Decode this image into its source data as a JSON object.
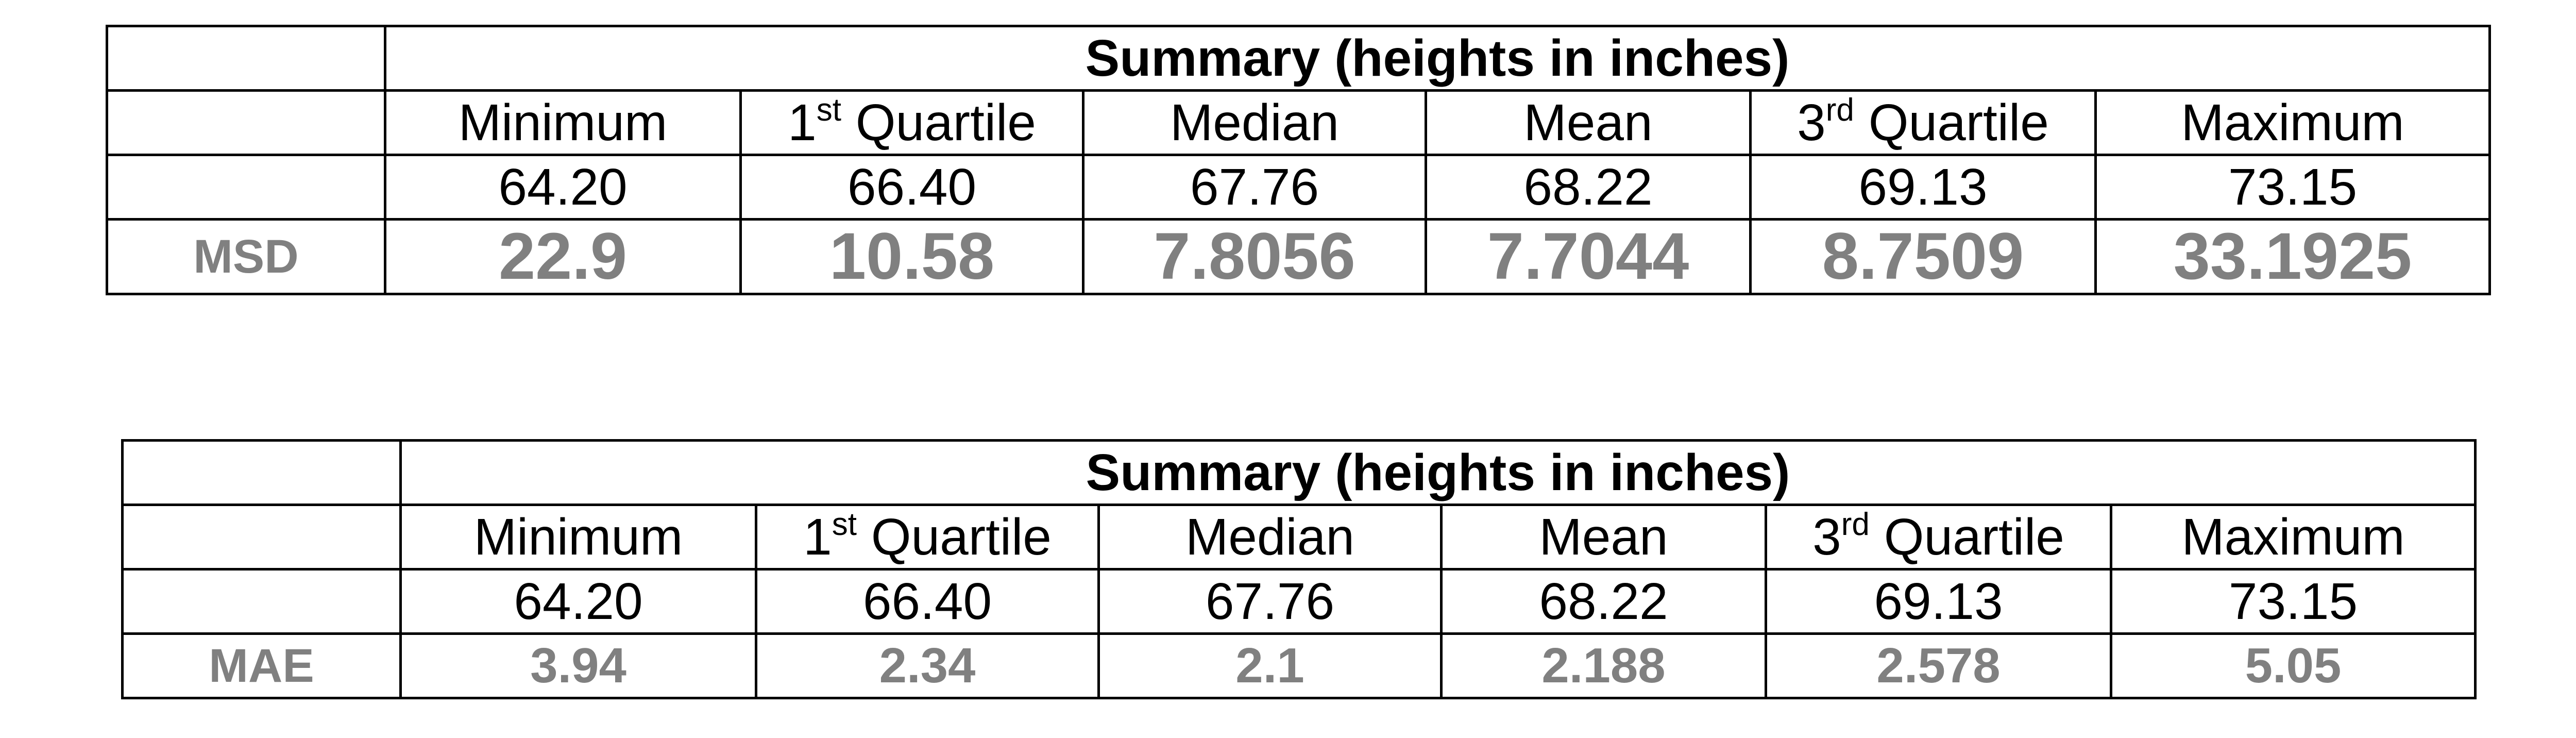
{
  "tables": [
    {
      "title": "Summary (heights in inches)",
      "headers": [
        {
          "main": "Minimum",
          "num": "",
          "sup": ""
        },
        {
          "main": "Quartile",
          "num": "1",
          "sup": "st"
        },
        {
          "main": "Median",
          "num": "",
          "sup": ""
        },
        {
          "main": "Mean",
          "num": "",
          "sup": ""
        },
        {
          "main": "Quartile",
          "num": "3",
          "sup": "rd"
        },
        {
          "main": "Maximum",
          "num": "",
          "sup": ""
        }
      ],
      "values": [
        "64.20",
        "66.40",
        "67.76",
        "68.22",
        "69.13",
        "73.15"
      ],
      "metric": {
        "label": "MSD",
        "values": [
          "22.9",
          "10.58",
          "7.8056",
          "7.7044",
          "8.7509",
          "33.1925"
        ]
      }
    },
    {
      "title": "Summary (heights in inches)",
      "headers": [
        {
          "main": "Minimum",
          "num": "",
          "sup": ""
        },
        {
          "main": "Quartile",
          "num": "1",
          "sup": "st"
        },
        {
          "main": "Median",
          "num": "",
          "sup": ""
        },
        {
          "main": "Mean",
          "num": "",
          "sup": ""
        },
        {
          "main": "Quartile",
          "num": "3",
          "sup": "rd"
        },
        {
          "main": "Maximum",
          "num": "",
          "sup": ""
        }
      ],
      "values": [
        "64.20",
        "66.40",
        "67.76",
        "68.22",
        "69.13",
        "73.15"
      ],
      "metric": {
        "label": "MAE",
        "values": [
          "3.94",
          "2.34",
          "2.1",
          "2.188",
          "2.578",
          "5.05"
        ]
      }
    }
  ]
}
